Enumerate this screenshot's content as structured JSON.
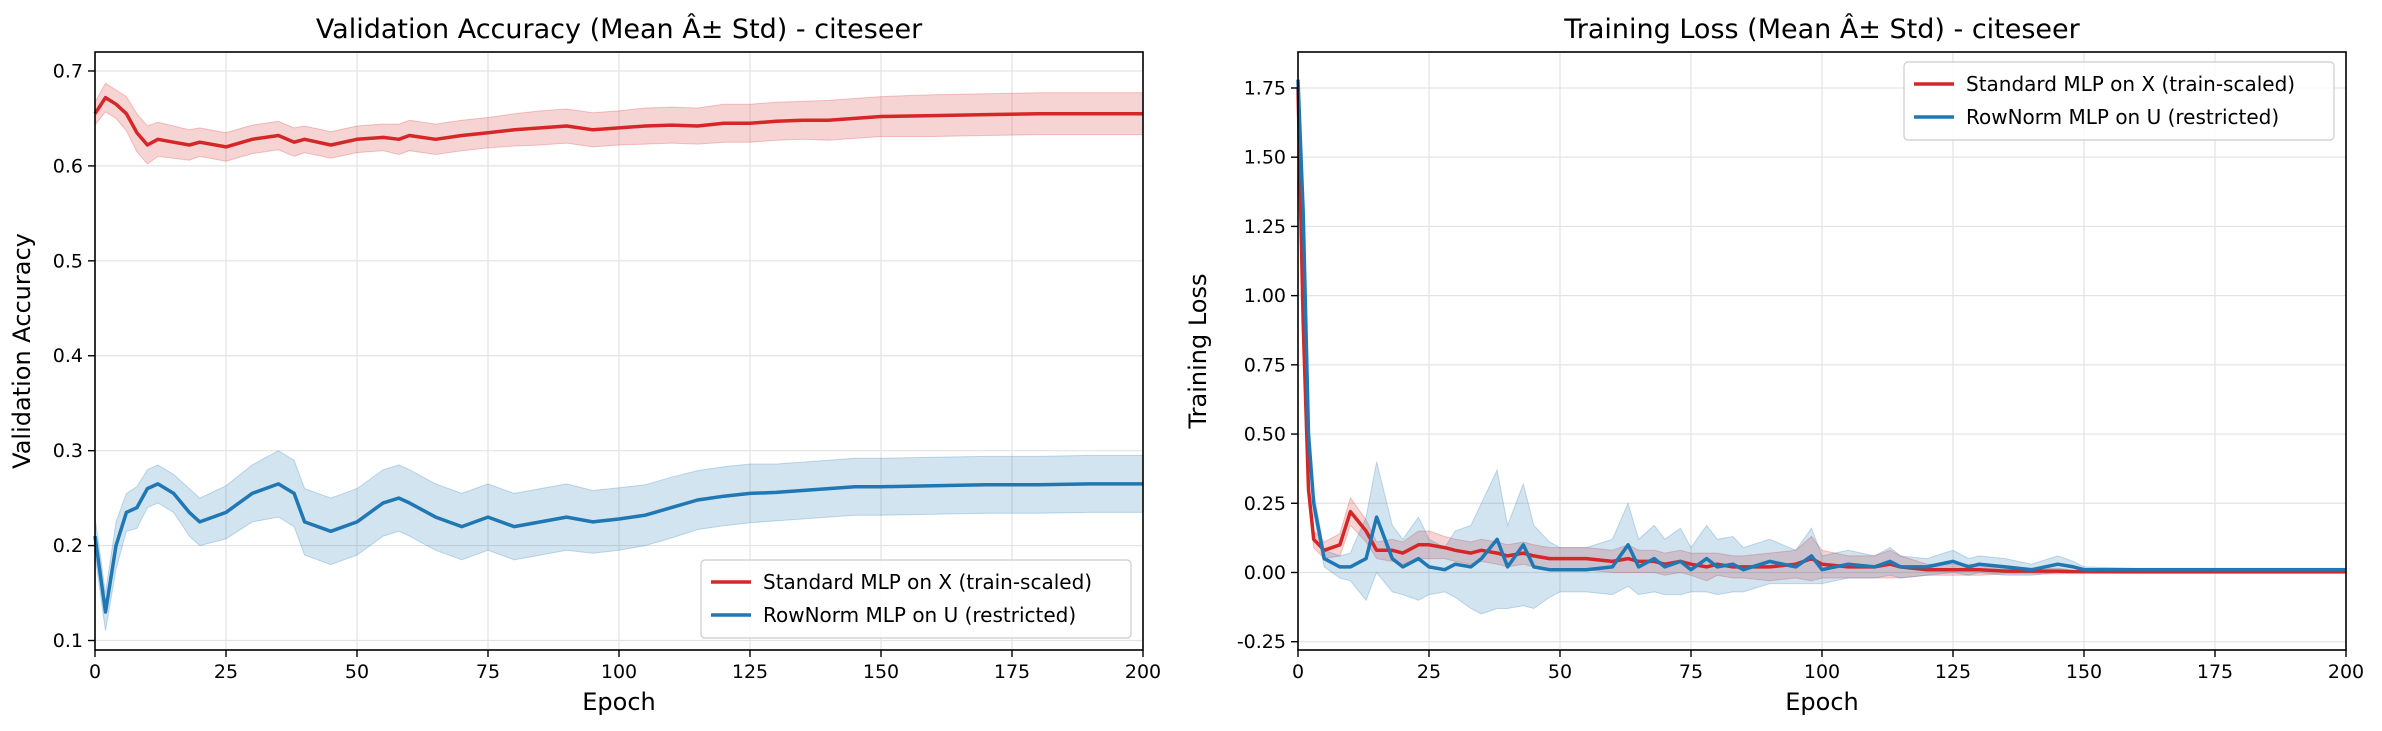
{
  "chart_data": [
    {
      "type": "line",
      "title": "Validation Accuracy (Mean Â± Std) - citeseer",
      "xlabel": "Epoch",
      "ylabel": "Validation Accuracy",
      "xlim": [
        0,
        200
      ],
      "ylim": [
        0.09,
        0.72
      ],
      "xticks": [
        0,
        25,
        50,
        75,
        100,
        125,
        150,
        175,
        200
      ],
      "yticks": [
        0.1,
        0.2,
        0.3,
        0.4,
        0.5,
        0.6,
        0.7
      ],
      "grid": true,
      "legend_position": "lower-right",
      "x": [
        0,
        2,
        4,
        6,
        8,
        10,
        12,
        15,
        18,
        20,
        25,
        30,
        35,
        38,
        40,
        45,
        50,
        55,
        58,
        60,
        65,
        70,
        75,
        80,
        85,
        90,
        95,
        100,
        105,
        110,
        115,
        120,
        125,
        130,
        135,
        140,
        145,
        150,
        160,
        170,
        180,
        190,
        200
      ],
      "series": [
        {
          "name": "Standard MLP on X (train-scaled)",
          "color": "#d62728",
          "mean": [
            0.655,
            0.672,
            0.665,
            0.655,
            0.635,
            0.622,
            0.628,
            0.625,
            0.622,
            0.625,
            0.62,
            0.628,
            0.632,
            0.625,
            0.628,
            0.622,
            0.628,
            0.63,
            0.628,
            0.632,
            0.628,
            0.632,
            0.635,
            0.638,
            0.64,
            0.642,
            0.638,
            0.64,
            0.642,
            0.643,
            0.642,
            0.645,
            0.645,
            0.647,
            0.648,
            0.648,
            0.65,
            0.652,
            0.653,
            0.654,
            0.655,
            0.655,
            0.655
          ],
          "std": [
            0.012,
            0.015,
            0.015,
            0.018,
            0.02,
            0.02,
            0.018,
            0.017,
            0.016,
            0.015,
            0.015,
            0.015,
            0.015,
            0.015,
            0.014,
            0.014,
            0.014,
            0.014,
            0.016,
            0.016,
            0.016,
            0.016,
            0.016,
            0.017,
            0.018,
            0.018,
            0.018,
            0.018,
            0.019,
            0.019,
            0.019,
            0.02,
            0.02,
            0.02,
            0.02,
            0.021,
            0.021,
            0.021,
            0.022,
            0.022,
            0.022,
            0.022,
            0.022
          ]
        },
        {
          "name": "RowNorm MLP on U (restricted)",
          "color": "#1f77b4",
          "mean": [
            0.21,
            0.13,
            0.2,
            0.235,
            0.24,
            0.26,
            0.265,
            0.255,
            0.235,
            0.225,
            0.235,
            0.255,
            0.265,
            0.255,
            0.225,
            0.215,
            0.225,
            0.245,
            0.25,
            0.245,
            0.23,
            0.22,
            0.23,
            0.22,
            0.225,
            0.23,
            0.225,
            0.228,
            0.232,
            0.24,
            0.248,
            0.252,
            0.255,
            0.256,
            0.258,
            0.26,
            0.262,
            0.262,
            0.263,
            0.264,
            0.264,
            0.265,
            0.265
          ],
          "std": [
            0.02,
            0.02,
            0.025,
            0.02,
            0.022,
            0.02,
            0.02,
            0.02,
            0.025,
            0.025,
            0.028,
            0.03,
            0.035,
            0.035,
            0.035,
            0.035,
            0.035,
            0.035,
            0.035,
            0.035,
            0.035,
            0.035,
            0.035,
            0.035,
            0.035,
            0.035,
            0.033,
            0.033,
            0.032,
            0.032,
            0.031,
            0.031,
            0.031,
            0.03,
            0.03,
            0.03,
            0.03,
            0.03,
            0.03,
            0.03,
            0.03,
            0.03,
            0.03
          ]
        }
      ]
    },
    {
      "type": "line",
      "title": "Training Loss (Mean Â± Std) - citeseer",
      "xlabel": "Epoch",
      "ylabel": "Training Loss",
      "xlim": [
        0,
        200
      ],
      "ylim": [
        -0.28,
        1.88
      ],
      "xticks": [
        0,
        25,
        50,
        75,
        100,
        125,
        150,
        175,
        200
      ],
      "yticks": [
        -0.25,
        0.0,
        0.25,
        0.5,
        0.75,
        1.0,
        1.25,
        1.5,
        1.75
      ],
      "grid": true,
      "legend_position": "upper-right",
      "x": [
        0,
        1,
        2,
        3,
        5,
        8,
        10,
        13,
        15,
        18,
        20,
        23,
        25,
        28,
        30,
        33,
        35,
        38,
        40,
        43,
        45,
        48,
        50,
        55,
        60,
        63,
        65,
        68,
        70,
        73,
        75,
        78,
        80,
        83,
        85,
        90,
        95,
        98,
        100,
        105,
        110,
        113,
        115,
        120,
        125,
        128,
        130,
        135,
        140,
        145,
        148,
        150,
        160,
        175,
        200
      ],
      "series": [
        {
          "name": "Standard MLP on X (train-scaled)",
          "color": "#d62728",
          "mean": [
            1.75,
            0.9,
            0.3,
            0.12,
            0.08,
            0.1,
            0.22,
            0.15,
            0.08,
            0.08,
            0.07,
            0.1,
            0.1,
            0.09,
            0.08,
            0.07,
            0.08,
            0.07,
            0.06,
            0.07,
            0.06,
            0.05,
            0.05,
            0.05,
            0.04,
            0.05,
            0.04,
            0.04,
            0.03,
            0.04,
            0.03,
            0.02,
            0.03,
            0.02,
            0.02,
            0.02,
            0.03,
            0.05,
            0.03,
            0.02,
            0.02,
            0.03,
            0.02,
            0.01,
            0.01,
            0.01,
            0.01,
            0.005,
            0.005,
            0.005,
            0.003,
            0.003,
            0.002,
            0.002,
            0.002
          ],
          "std": [
            0.02,
            0.05,
            0.04,
            0.03,
            0.03,
            0.04,
            0.05,
            0.04,
            0.03,
            0.04,
            0.04,
            0.05,
            0.05,
            0.04,
            0.04,
            0.04,
            0.04,
            0.04,
            0.04,
            0.04,
            0.04,
            0.04,
            0.04,
            0.04,
            0.04,
            0.05,
            0.04,
            0.04,
            0.04,
            0.04,
            0.04,
            0.05,
            0.04,
            0.04,
            0.04,
            0.05,
            0.05,
            0.08,
            0.05,
            0.04,
            0.04,
            0.05,
            0.04,
            0.02,
            0.02,
            0.02,
            0.02,
            0.01,
            0.01,
            0.01,
            0.005,
            0.005,
            0.003,
            0.003,
            0.003
          ]
        },
        {
          "name": "RowNorm MLP on U (restricted)",
          "color": "#1f77b4",
          "mean": [
            1.78,
            1.3,
            0.5,
            0.25,
            0.05,
            0.02,
            0.02,
            0.05,
            0.2,
            0.05,
            0.02,
            0.05,
            0.02,
            0.01,
            0.03,
            0.02,
            0.05,
            0.12,
            0.02,
            0.1,
            0.02,
            0.01,
            0.01,
            0.01,
            0.02,
            0.1,
            0.02,
            0.05,
            0.02,
            0.04,
            0.01,
            0.05,
            0.02,
            0.03,
            0.01,
            0.04,
            0.02,
            0.06,
            0.01,
            0.03,
            0.02,
            0.04,
            0.02,
            0.02,
            0.04,
            0.02,
            0.03,
            0.02,
            0.01,
            0.03,
            0.02,
            0.01,
            0.01,
            0.01,
            0.01
          ],
          "std": [
            0.02,
            0.05,
            0.05,
            0.04,
            0.03,
            0.04,
            0.05,
            0.15,
            0.2,
            0.12,
            0.1,
            0.15,
            0.1,
            0.08,
            0.12,
            0.15,
            0.2,
            0.25,
            0.15,
            0.22,
            0.15,
            0.1,
            0.08,
            0.08,
            0.1,
            0.15,
            0.1,
            0.12,
            0.1,
            0.12,
            0.08,
            0.12,
            0.1,
            0.1,
            0.08,
            0.08,
            0.06,
            0.1,
            0.05,
            0.05,
            0.04,
            0.05,
            0.04,
            0.03,
            0.04,
            0.03,
            0.03,
            0.03,
            0.02,
            0.03,
            0.02,
            0.01,
            0.005,
            0.005,
            0.005
          ]
        }
      ]
    }
  ]
}
